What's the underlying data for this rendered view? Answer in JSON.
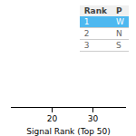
{
  "chart_data": {
    "type": "table",
    "xlabel": "Signal Rank (Top 50)",
    "xlim": [
      10,
      38
    ],
    "xticks": [
      20,
      30
    ],
    "columns": [
      "Rank",
      "P"
    ],
    "rows": [
      [
        "1",
        "W"
      ],
      [
        "2",
        "N"
      ],
      [
        "3",
        "S"
      ]
    ],
    "highlight": [
      true,
      false,
      false
    ],
    "color": "#4db8f0"
  }
}
